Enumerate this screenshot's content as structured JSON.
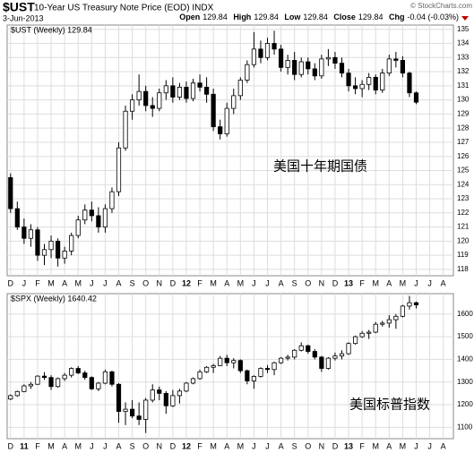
{
  "header": {
    "symbol": "$UST",
    "description": "10-Year US Treasury Note Price (EOD) INDX",
    "date": "3-Jun-2013",
    "copyright": "© StockCharts.com",
    "quote": [
      {
        "label": "Open",
        "value": "129.84"
      },
      {
        "label": "High",
        "value": "129.84"
      },
      {
        "label": "Low",
        "value": "129.84"
      },
      {
        "label": "Close",
        "value": "129.84"
      },
      {
        "label": "Chg",
        "value": "-0.04 (-0.03%)"
      }
    ]
  },
  "chart_data": [
    {
      "type": "candlestick",
      "label": "$UST (Weekly) 129.84",
      "annotation": "美国十年期国债",
      "color": "#000000",
      "up_fill": "#ffffff",
      "grid": true,
      "categories": [
        "D",
        null,
        "J",
        null,
        "F",
        null,
        "M",
        null,
        "A",
        null,
        "M",
        null,
        "J",
        null,
        "J",
        null,
        "A",
        null,
        "S",
        null,
        "O",
        null,
        "N",
        null,
        "D",
        null,
        "12",
        null,
        "F",
        null,
        "M",
        null,
        "A",
        null,
        "M",
        null,
        "J",
        null,
        "J",
        null,
        "A",
        null,
        "S",
        null,
        "O",
        null,
        "N",
        null,
        "D",
        null,
        "13",
        null,
        "F",
        null,
        "M",
        null,
        "A",
        null,
        "M",
        null,
        "J",
        null,
        "J",
        null,
        "A",
        null
      ],
      "open": [
        124.5,
        122.3,
        121,
        120.2,
        120.8,
        119,
        119.4,
        120,
        118.8,
        119.3,
        120.4,
        121.5,
        122.2,
        121.8,
        121,
        122.3,
        123.5,
        126.6,
        129.2,
        130,
        130.6,
        129.6,
        129.4,
        130.5,
        131,
        130.2,
        130.9,
        130.1,
        131.2,
        130.9,
        130.4,
        128.1,
        127.6,
        129.4,
        130.3,
        131.4,
        132.5,
        133.6,
        133,
        134,
        133.6,
        132.3,
        132.8,
        131.8,
        132.7,
        132.2,
        131.7,
        132.9,
        133,
        132.6,
        131.9,
        131,
        130.8,
        131.1,
        131.6,
        130.7,
        131.9,
        132.9,
        132.8,
        131.9,
        130.5,
        null,
        null,
        null,
        null,
        null
      ],
      "high": [
        124.8,
        122.8,
        121.6,
        121.2,
        121,
        119.8,
        120.4,
        120.2,
        119.6,
        120.6,
        121.8,
        122.6,
        122.8,
        122.4,
        122.6,
        123.8,
        127,
        129.6,
        130.4,
        131.8,
        131,
        130.2,
        130.8,
        131.4,
        131.6,
        131.2,
        131.3,
        131.5,
        131.8,
        131.6,
        130.8,
        128.6,
        129.8,
        130.8,
        131.6,
        132.8,
        134.8,
        134.2,
        134.4,
        134.9,
        133.9,
        133.2,
        133.4,
        133,
        133,
        132.6,
        133.2,
        133.6,
        133.4,
        133,
        132.2,
        131.6,
        131.4,
        131.9,
        131.8,
        132.2,
        133.2,
        133.4,
        133.1,
        132,
        130.6,
        null,
        null,
        null,
        null,
        null
      ],
      "low": [
        122,
        120.8,
        119.8,
        119.6,
        118.6,
        118.3,
        118.8,
        118.2,
        118.4,
        119,
        120.2,
        121.2,
        121.4,
        120.6,
        120.6,
        122,
        123.2,
        126.4,
        128.6,
        129.6,
        129.2,
        128.8,
        129.2,
        130,
        129.8,
        130,
        129.8,
        129.9,
        130.6,
        129.8,
        127.8,
        127.2,
        127.4,
        129,
        130,
        131.2,
        132.3,
        132.6,
        132.8,
        133.2,
        132,
        131.8,
        131.4,
        131.6,
        131.8,
        131.4,
        131.5,
        132.4,
        132.2,
        131.6,
        130.6,
        130.4,
        130.2,
        130.7,
        130.4,
        130.5,
        131.7,
        132.3,
        131.6,
        130.2,
        129.7,
        null,
        null,
        null,
        null,
        null
      ],
      "close": [
        122.3,
        121,
        120.2,
        120.8,
        119,
        119.4,
        120,
        118.8,
        119.3,
        120.4,
        121.5,
        122.2,
        121.8,
        121,
        122.3,
        123.5,
        126.6,
        129.2,
        130,
        130.6,
        129.6,
        129.4,
        130.5,
        131,
        130.2,
        130.9,
        130.1,
        131.2,
        130.9,
        130.4,
        128.1,
        127.6,
        129.4,
        130.3,
        131.4,
        132.5,
        133.6,
        133,
        134,
        133.6,
        132.3,
        132.8,
        131.8,
        132.7,
        132.2,
        131.7,
        132.9,
        133,
        132.6,
        131.9,
        131,
        130.8,
        131.1,
        131.6,
        130.7,
        131.9,
        132.9,
        132.8,
        131.9,
        130.5,
        129.84,
        null,
        null,
        null,
        null,
        null
      ],
      "ylim": [
        117.55,
        135.3
      ],
      "yticks": [
        118,
        119,
        120,
        121,
        122,
        123,
        124,
        125,
        126,
        127,
        128,
        129,
        130,
        131,
        132,
        133,
        134,
        135
      ]
    },
    {
      "type": "candlestick",
      "label": "$SPX (Weekly) 1640.42",
      "annotation": "美国标普指数",
      "color": "#000000",
      "up_fill": "#ffffff",
      "grid": true,
      "categories": [
        "D",
        null,
        "11",
        null,
        "F",
        null,
        "M",
        null,
        "A",
        null,
        "M",
        null,
        "J",
        null,
        "J",
        null,
        "A",
        null,
        "S",
        null,
        "O",
        null,
        "N",
        null,
        "D",
        null,
        "12",
        null,
        "F",
        null,
        "M",
        null,
        "A",
        null,
        "M",
        null,
        "J",
        null,
        "J",
        null,
        "A",
        null,
        "S",
        null,
        "O",
        null,
        "N",
        null,
        "D",
        null,
        "13",
        null,
        "F",
        null,
        "M",
        null,
        "A",
        null,
        "M",
        null,
        "J",
        null,
        "J",
        null,
        "A",
        null
      ],
      "open": [
        1225,
        1240,
        1258,
        1283,
        1290,
        1326,
        1320,
        1280,
        1315,
        1330,
        1360,
        1340,
        1320,
        1270,
        1295,
        1345,
        1290,
        1170,
        1180,
        1150,
        1135,
        1220,
        1265,
        1250,
        1195,
        1240,
        1260,
        1295,
        1315,
        1345,
        1365,
        1372,
        1405,
        1385,
        1395,
        1350,
        1305,
        1325,
        1360,
        1355,
        1385,
        1405,
        1410,
        1440,
        1460,
        1435,
        1410,
        1360,
        1405,
        1415,
        1425,
        1470,
        1500,
        1515,
        1520,
        1555,
        1560,
        1575,
        1590,
        1635,
        1650,
        null,
        null,
        null,
        null,
        null
      ],
      "high": [
        1245,
        1262,
        1290,
        1300,
        1330,
        1344,
        1330,
        1320,
        1340,
        1365,
        1370,
        1350,
        1325,
        1300,
        1355,
        1350,
        1295,
        1210,
        1220,
        1210,
        1230,
        1290,
        1280,
        1260,
        1265,
        1270,
        1300,
        1320,
        1355,
        1370,
        1380,
        1415,
        1420,
        1405,
        1400,
        1355,
        1330,
        1365,
        1375,
        1390,
        1410,
        1420,
        1445,
        1475,
        1465,
        1445,
        1415,
        1410,
        1430,
        1440,
        1475,
        1505,
        1525,
        1530,
        1565,
        1570,
        1595,
        1600,
        1640,
        1680,
        1655,
        null,
        null,
        null,
        null,
        null
      ],
      "low": [
        1220,
        1235,
        1255,
        1270,
        1288,
        1310,
        1265,
        1275,
        1305,
        1320,
        1335,
        1310,
        1265,
        1260,
        1290,
        1280,
        1120,
        1110,
        1140,
        1110,
        1075,
        1210,
        1220,
        1160,
        1190,
        1205,
        1255,
        1290,
        1310,
        1340,
        1340,
        1370,
        1370,
        1360,
        1340,
        1290,
        1270,
        1320,
        1340,
        1330,
        1380,
        1395,
        1400,
        1435,
        1425,
        1400,
        1345,
        1355,
        1395,
        1400,
        1420,
        1465,
        1495,
        1490,
        1515,
        1545,
        1540,
        1535,
        1585,
        1620,
        1625,
        null,
        null,
        null,
        null,
        null
      ],
      "close": [
        1240,
        1258,
        1283,
        1290,
        1326,
        1320,
        1280,
        1315,
        1330,
        1360,
        1340,
        1320,
        1270,
        1295,
        1345,
        1290,
        1170,
        1180,
        1150,
        1135,
        1220,
        1265,
        1250,
        1195,
        1240,
        1260,
        1295,
        1315,
        1345,
        1365,
        1372,
        1405,
        1385,
        1395,
        1350,
        1305,
        1325,
        1360,
        1355,
        1385,
        1405,
        1410,
        1440,
        1460,
        1435,
        1410,
        1360,
        1405,
        1415,
        1425,
        1470,
        1500,
        1515,
        1520,
        1555,
        1560,
        1575,
        1590,
        1635,
        1650,
        1640.42,
        null,
        null,
        null,
        null,
        null
      ],
      "ylim": [
        1050,
        1690
      ],
      "yticks": [
        1100,
        1200,
        1300,
        1400,
        1500,
        1600
      ]
    }
  ]
}
